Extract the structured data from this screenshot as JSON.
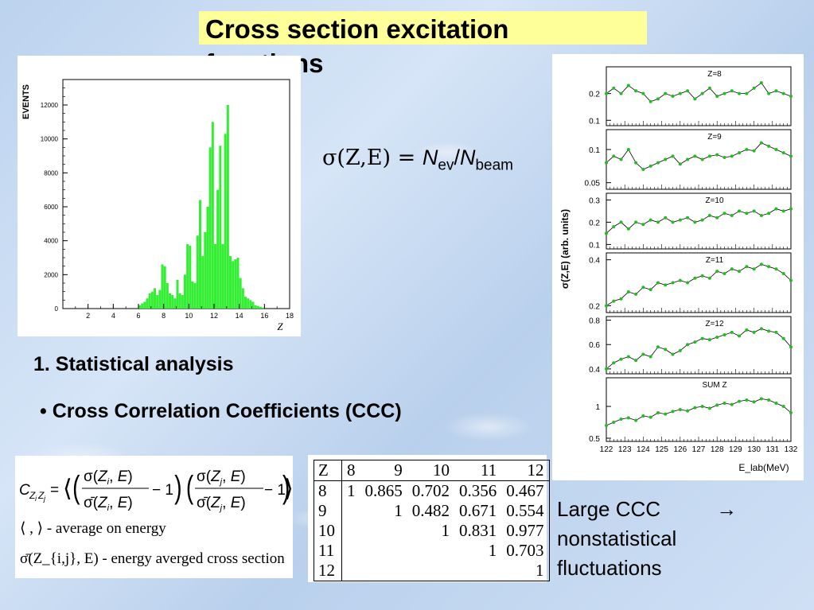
{
  "title": "Cross section excitation functions",
  "formula": {
    "lhs": "σ(Z,E) = ",
    "n": "N",
    "sub_ev": "ev",
    "slash": "/",
    "sub_beam": "beam"
  },
  "section_heading": "1. Statistical analysis",
  "bullet": "• Cross Correlation Coefficients (CCC)",
  "conclusion": {
    "line1": "Large CCC",
    "arrow": "→",
    "line2": "nonstatistical",
    "line3": "fluctuations"
  },
  "ccc_formula": {
    "definition": "C_{Z_i Z_j} = ⟨(σ(Z_i,E)/σ̄(Z_i,E) − 1)(σ(Z_j,E)/σ̄(Z_j,E) − 1)⟩",
    "avg_note": "⟨ , ⟩ - average on energy",
    "xs_note": "σ̄(Z_{i,j}, E) - energy averged cross section"
  },
  "ccc_table": {
    "header": [
      "Z",
      "8",
      "9",
      "10",
      "11",
      "12"
    ],
    "rows": [
      [
        "8",
        "1",
        "0.865",
        "0.702",
        "0.356",
        "0.467"
      ],
      [
        "9",
        "",
        "1",
        "0.482",
        "0.671",
        "0.554"
      ],
      [
        "10",
        "",
        "",
        "1",
        "0.831",
        "0.977"
      ],
      [
        "11",
        "",
        "",
        "",
        "1",
        "0.703"
      ],
      [
        "12",
        "",
        "",
        "",
        "",
        "1"
      ]
    ]
  },
  "colors": {
    "bars": "#33ee33",
    "title_bg": "#ffff99",
    "points": "#22bb22"
  },
  "chart_data": [
    {
      "type": "bar",
      "title": "",
      "ylabel": "EVENTS",
      "xlabel": "Z",
      "xlim": [
        0,
        18
      ],
      "ylim": [
        0,
        13500
      ],
      "xticks": [
        2,
        4,
        6,
        8,
        10,
        12,
        14,
        16,
        18
      ],
      "yticks": [
        0,
        2000,
        4000,
        6000,
        8000,
        10000,
        12000
      ],
      "x": [
        6.0,
        6.2,
        6.4,
        6.6,
        6.8,
        7.0,
        7.2,
        7.4,
        7.6,
        7.8,
        8.0,
        8.2,
        8.4,
        8.6,
        8.8,
        9.0,
        9.2,
        9.4,
        9.6,
        9.8,
        10.0,
        10.2,
        10.4,
        10.6,
        10.8,
        11.0,
        11.2,
        11.4,
        11.6,
        11.8,
        12.0,
        12.2,
        12.4,
        12.6,
        12.8,
        13.0,
        13.2,
        13.4,
        13.6,
        13.8,
        14.0,
        14.2,
        14.4,
        14.6,
        14.8,
        15.0,
        15.2,
        15.4,
        15.6,
        15.8
      ],
      "values": [
        200,
        300,
        400,
        600,
        900,
        1000,
        1200,
        800,
        1100,
        2600,
        2500,
        1500,
        900,
        800,
        600,
        1700,
        900,
        800,
        2000,
        3800,
        3700,
        1600,
        1500,
        4300,
        6400,
        3100,
        4500,
        6000,
        9500,
        11000,
        3800,
        7000,
        9600,
        3800,
        10300,
        12000,
        3100,
        2800,
        2900,
        3000,
        1800,
        1200,
        700,
        600,
        500,
        400,
        200,
        150,
        100,
        50
      ]
    },
    {
      "type": "line",
      "ylabel": "σ(Z,E) (arb. units)",
      "xlabel": "E_lab(MeV)",
      "x": [
        122,
        122.4,
        122.8,
        123.2,
        123.6,
        124.0,
        124.4,
        124.8,
        125.2,
        125.6,
        126.0,
        126.4,
        126.8,
        127.2,
        127.6,
        128.0,
        128.4,
        128.8,
        129.2,
        129.6,
        130.0,
        130.4,
        130.8,
        131.2,
        131.6,
        132.0
      ],
      "xticks": [
        "122",
        "123",
        "124",
        "125",
        "126",
        "127",
        "128",
        "129",
        "130",
        "131",
        "132"
      ],
      "panels": [
        {
          "label": "Z=8",
          "yticks": [
            "0.1",
            "0.2"
          ],
          "ylim": [
            0.08,
            0.3
          ],
          "values": [
            0.2,
            0.22,
            0.2,
            0.23,
            0.21,
            0.2,
            0.17,
            0.18,
            0.2,
            0.19,
            0.2,
            0.21,
            0.18,
            0.2,
            0.22,
            0.19,
            0.2,
            0.21,
            0.2,
            0.2,
            0.22,
            0.24,
            0.2,
            0.21,
            0.2,
            0.19
          ]
        },
        {
          "label": "Z=9",
          "yticks": [
            "0.05",
            "0.1"
          ],
          "ylim": [
            0.04,
            0.13
          ],
          "values": [
            0.08,
            0.09,
            0.085,
            0.1,
            0.08,
            0.07,
            0.075,
            0.08,
            0.085,
            0.09,
            0.078,
            0.085,
            0.09,
            0.085,
            0.09,
            0.092,
            0.088,
            0.09,
            0.095,
            0.1,
            0.098,
            0.11,
            0.105,
            0.1,
            0.095,
            0.09
          ]
        },
        {
          "label": "Z=10",
          "yticks": [
            "0.1",
            "0.2",
            "0.3"
          ],
          "ylim": [
            0.08,
            0.33
          ],
          "values": [
            0.15,
            0.18,
            0.2,
            0.17,
            0.2,
            0.19,
            0.21,
            0.2,
            0.22,
            0.2,
            0.21,
            0.22,
            0.2,
            0.21,
            0.23,
            0.22,
            0.24,
            0.23,
            0.25,
            0.24,
            0.25,
            0.23,
            0.24,
            0.26,
            0.25,
            0.26
          ]
        },
        {
          "label": "Z=11",
          "yticks": [
            "0.2",
            "0.4"
          ],
          "ylim": [
            0.17,
            0.43
          ],
          "values": [
            0.2,
            0.22,
            0.23,
            0.26,
            0.25,
            0.28,
            0.27,
            0.3,
            0.29,
            0.3,
            0.31,
            0.3,
            0.32,
            0.33,
            0.32,
            0.35,
            0.34,
            0.36,
            0.35,
            0.37,
            0.36,
            0.38,
            0.37,
            0.36,
            0.34,
            0.31
          ]
        },
        {
          "label": "Z=12",
          "yticks": [
            "0.4",
            "0.6",
            "0.8"
          ],
          "ylim": [
            0.36,
            0.83
          ],
          "values": [
            0.4,
            0.45,
            0.48,
            0.5,
            0.47,
            0.52,
            0.5,
            0.58,
            0.56,
            0.52,
            0.55,
            0.6,
            0.62,
            0.65,
            0.64,
            0.66,
            0.68,
            0.7,
            0.67,
            0.72,
            0.7,
            0.73,
            0.71,
            0.7,
            0.65,
            0.58
          ]
        },
        {
          "label": "SUM Z",
          "yticks": [
            "0.5",
            "1"
          ],
          "ylim": [
            0.45,
            1.45
          ],
          "values": [
            0.7,
            0.75,
            0.8,
            0.82,
            0.78,
            0.85,
            0.83,
            0.9,
            0.88,
            0.92,
            0.95,
            0.93,
            0.98,
            1.0,
            0.97,
            1.02,
            1.05,
            1.03,
            1.08,
            1.1,
            1.07,
            1.12,
            1.1,
            1.05,
            1.0,
            0.9
          ]
        }
      ]
    }
  ]
}
